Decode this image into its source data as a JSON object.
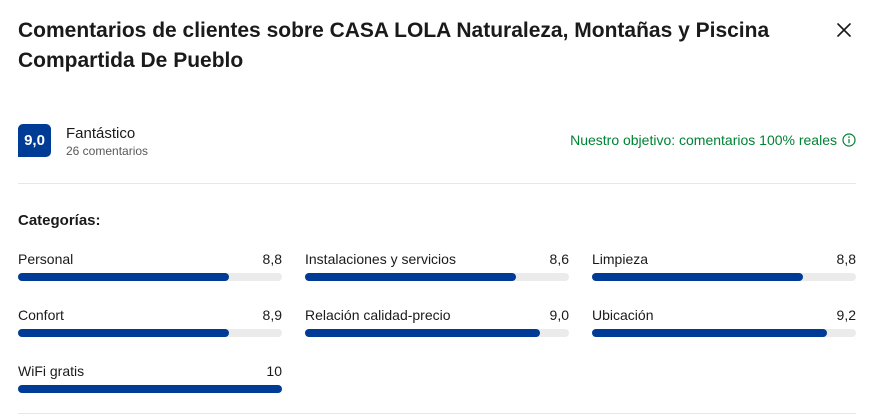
{
  "modal": {
    "title": "Comentarios de clientes sobre CASA LOLA Naturaleza, Montañas y Piscina Compartida De Pueblo",
    "close_icon": "close-icon"
  },
  "summary": {
    "score": "9,0",
    "rating_word": "Fantástico",
    "review_count": "26 comentarios",
    "objective_text": "Nuestro objetivo: comentarios 100% reales",
    "objective_icon": "info-icon"
  },
  "categories": {
    "title": "Categorías:",
    "items": [
      {
        "label": "Personal",
        "score": "8,8",
        "fill": 0.8
      },
      {
        "label": "Instalaciones y servicios",
        "score": "8,6",
        "fill": 0.8
      },
      {
        "label": "Limpieza",
        "score": "8,8",
        "fill": 0.8
      },
      {
        "label": "Confort",
        "score": "8,9",
        "fill": 0.8
      },
      {
        "label": "Relación calidad-precio",
        "score": "9,0",
        "fill": 0.89
      },
      {
        "label": "Ubicación",
        "score": "9,2",
        "fill": 0.89
      },
      {
        "label": "WiFi gratis",
        "score": "10",
        "fill": 1.0
      }
    ]
  },
  "colors": {
    "brand_blue": "#003b95",
    "objective_green": "#008234",
    "track_gray": "#ebebeb"
  }
}
